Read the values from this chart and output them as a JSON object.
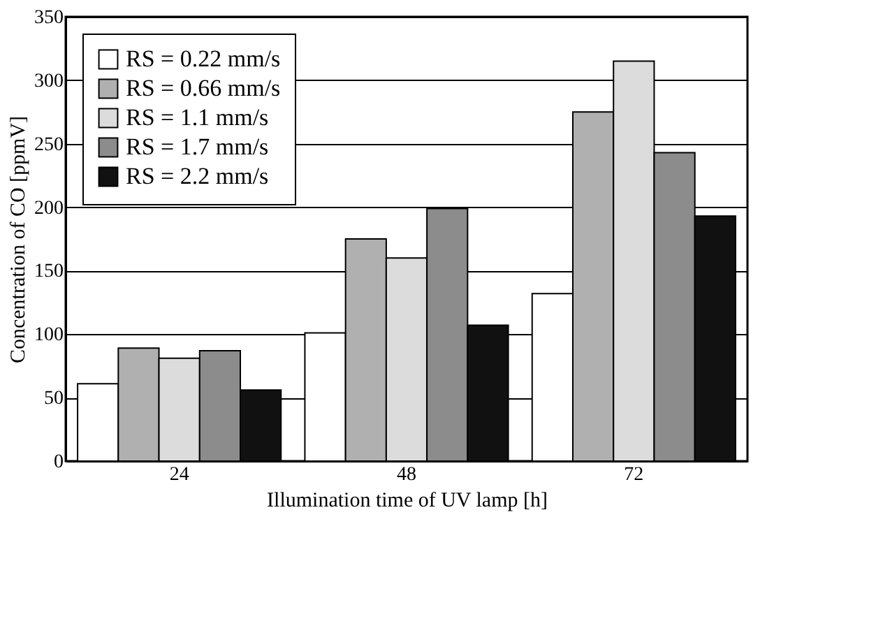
{
  "chart_data": {
    "type": "bar",
    "xlabel": "Illumination time of UV lamp [h]",
    "ylabel": "Concentration of CO [ppmV]",
    "categories": [
      "24",
      "48",
      "72"
    ],
    "series": [
      {
        "name": "RS = 0.22 mm/s",
        "color": "#ffffff",
        "values": [
          61,
          101,
          132
        ]
      },
      {
        "name": "RS = 0.66 mm/s",
        "color": "#b0b0b0",
        "values": [
          89,
          175,
          275
        ]
      },
      {
        "name": "RS = 1.1 mm/s",
        "color": "#dcdcdc",
        "values": [
          81,
          160,
          315
        ]
      },
      {
        "name": "RS = 1.7 mm/s",
        "color": "#8c8c8c",
        "values": [
          87,
          199,
          243
        ]
      },
      {
        "name": "RS = 2.2 mm/s",
        "color": "#111111",
        "values": [
          56,
          107,
          193
        ]
      }
    ],
    "ylim": [
      0,
      350
    ],
    "yticks": [
      0,
      50,
      100,
      150,
      200,
      250,
      300,
      350
    ],
    "grid": "y",
    "legend": "top left"
  }
}
